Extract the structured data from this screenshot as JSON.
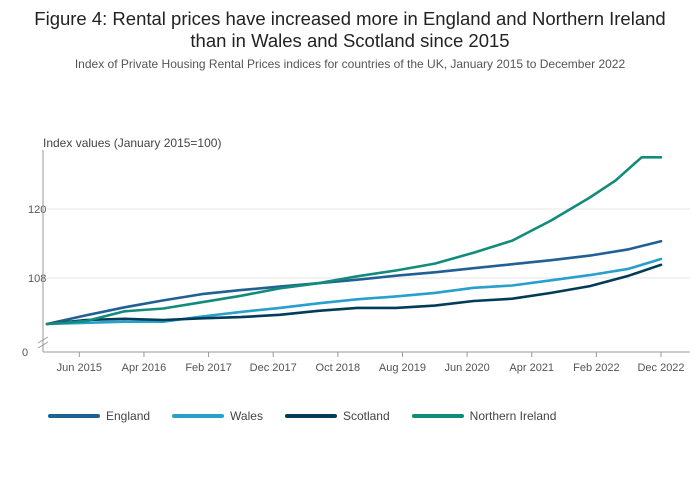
{
  "header": {
    "title": "Figure 4: Rental prices have increased more in England and Northern Ireland than in Wales and Scotland since 2015",
    "subtitle": "Index of Private Housing Rental Prices indices for countries of the UK, January 2015 to December 2022"
  },
  "chart_data": {
    "type": "line",
    "ylabel": "Index values (January 2015=100)",
    "xlabel": "",
    "x_tick_labels": [
      "Jun 2015",
      "Apr 2016",
      "Feb 2017",
      "Dec 2017",
      "Oct 2018",
      "Aug 2019",
      "Jun 2020",
      "Apr 2021",
      "Feb 2022",
      "Dec 2022"
    ],
    "y_tick_labels": [
      "0",
      "108",
      "120"
    ],
    "y_axis_broken": true,
    "x_range": [
      "Jan 2015",
      "Dec 2022"
    ],
    "grid": "horizontal",
    "legend_position": "bottom",
    "series": [
      {
        "name": "England",
        "color": "#206095",
        "points": [
          [
            0,
            100.0
          ],
          [
            6,
            101.5
          ],
          [
            12,
            102.9
          ],
          [
            18,
            104.1
          ],
          [
            24,
            105.2
          ],
          [
            30,
            105.9
          ],
          [
            36,
            106.5
          ],
          [
            42,
            107.1
          ],
          [
            48,
            107.7
          ],
          [
            54,
            108.4
          ],
          [
            60,
            109.0
          ],
          [
            66,
            109.7
          ],
          [
            72,
            110.4
          ],
          [
            78,
            111.1
          ],
          [
            84,
            111.9
          ],
          [
            90,
            113.0
          ],
          [
            95,
            114.4
          ]
        ]
      },
      {
        "name": "Wales",
        "color": "#27a0cc",
        "points": [
          [
            0,
            100.0
          ],
          [
            6,
            100.2
          ],
          [
            12,
            100.4
          ],
          [
            18,
            100.4
          ],
          [
            24,
            101.3
          ],
          [
            30,
            102.1
          ],
          [
            36,
            102.8
          ],
          [
            42,
            103.6
          ],
          [
            48,
            104.3
          ],
          [
            54,
            104.8
          ],
          [
            60,
            105.4
          ],
          [
            66,
            106.3
          ],
          [
            72,
            106.7
          ],
          [
            78,
            107.6
          ],
          [
            84,
            108.5
          ],
          [
            90,
            109.6
          ],
          [
            95,
            111.3
          ]
        ]
      },
      {
        "name": "Scotland",
        "color": "#003c57",
        "points": [
          [
            0,
            100.0
          ],
          [
            6,
            100.7
          ],
          [
            12,
            100.9
          ],
          [
            18,
            100.7
          ],
          [
            24,
            101.0
          ],
          [
            30,
            101.2
          ],
          [
            36,
            101.6
          ],
          [
            42,
            102.3
          ],
          [
            48,
            102.8
          ],
          [
            54,
            102.8
          ],
          [
            60,
            103.2
          ],
          [
            66,
            104.0
          ],
          [
            72,
            104.4
          ],
          [
            78,
            105.4
          ],
          [
            84,
            106.6
          ],
          [
            90,
            108.4
          ],
          [
            95,
            110.3
          ]
        ]
      },
      {
        "name": "Northern Ireland",
        "color": "#118c7b",
        "points": [
          [
            0,
            100.0
          ],
          [
            6,
            100.5
          ],
          [
            12,
            102.2
          ],
          [
            18,
            102.7
          ],
          [
            24,
            103.8
          ],
          [
            30,
            104.9
          ],
          [
            36,
            106.2
          ],
          [
            42,
            107.1
          ],
          [
            48,
            108.3
          ],
          [
            54,
            109.3
          ],
          [
            60,
            110.5
          ],
          [
            66,
            112.4
          ],
          [
            72,
            114.5
          ],
          [
            78,
            118.0
          ],
          [
            84,
            122.0
          ],
          [
            88,
            125.0
          ],
          [
            92,
            129.0
          ],
          [
            95,
            129.0
          ]
        ]
      }
    ]
  }
}
